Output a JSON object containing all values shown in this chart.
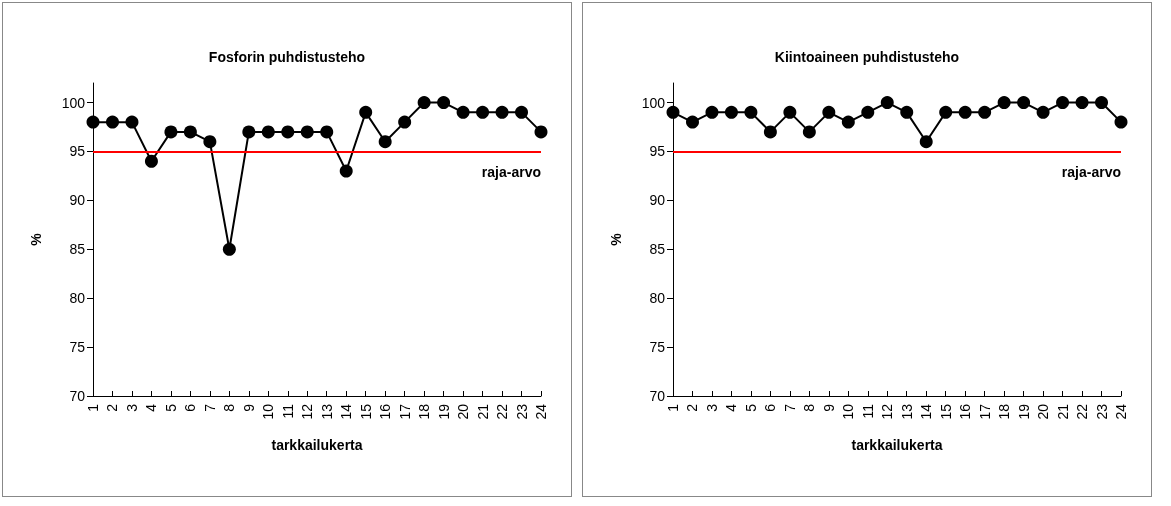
{
  "chart_data": [
    {
      "type": "line",
      "title": "Fosforin puhdistusteho",
      "xlabel": "tarkkailukerta",
      "ylabel": "%",
      "categories": [
        "1",
        "2",
        "3",
        "4",
        "5",
        "6",
        "7",
        "8",
        "9",
        "10",
        "11",
        "12",
        "13",
        "14",
        "15",
        "16",
        "17",
        "18",
        "19",
        "20",
        "21",
        "22",
        "23",
        "24"
      ],
      "series": [
        {
          "color": "#000000",
          "values": [
            98,
            98,
            98,
            94,
            97,
            97,
            96,
            85,
            97,
            97,
            97,
            97,
            97,
            93,
            99,
            96,
            98,
            100,
            100,
            99,
            99,
            99,
            99,
            97
          ]
        }
      ],
      "ylim": [
        70,
        102
      ],
      "yticks": [
        70,
        75,
        80,
        85,
        90,
        95,
        100
      ],
      "grid": false,
      "marker": "circle",
      "line_style": "solid",
      "ref_lines": [
        {
          "axis": "y",
          "value": 95,
          "label": "raja-arvo",
          "color": "#ff0000"
        }
      ]
    },
    {
      "type": "line",
      "title": "Kiintoaineen puhdistusteho",
      "xlabel": "tarkkailukerta",
      "ylabel": "%",
      "categories": [
        "1",
        "2",
        "3",
        "4",
        "5",
        "6",
        "7",
        "8",
        "9",
        "10",
        "11",
        "12",
        "13",
        "14",
        "15",
        "16",
        "17",
        "18",
        "19",
        "20",
        "21",
        "22",
        "23",
        "24"
      ],
      "series": [
        {
          "color": "#000000",
          "values": [
            99,
            98,
            99,
            99,
            99,
            97,
            99,
            97,
            99,
            98,
            99,
            100,
            99,
            96,
            99,
            99,
            99,
            100,
            100,
            99,
            100,
            100,
            100,
            98
          ]
        }
      ],
      "ylim": [
        70,
        102
      ],
      "yticks": [
        70,
        75,
        80,
        85,
        90,
        95,
        100
      ],
      "grid": false,
      "marker": "circle",
      "line_style": "solid",
      "ref_lines": [
        {
          "axis": "y",
          "value": 95,
          "label": "raja-arvo",
          "color": "#ff0000"
        }
      ]
    }
  ]
}
